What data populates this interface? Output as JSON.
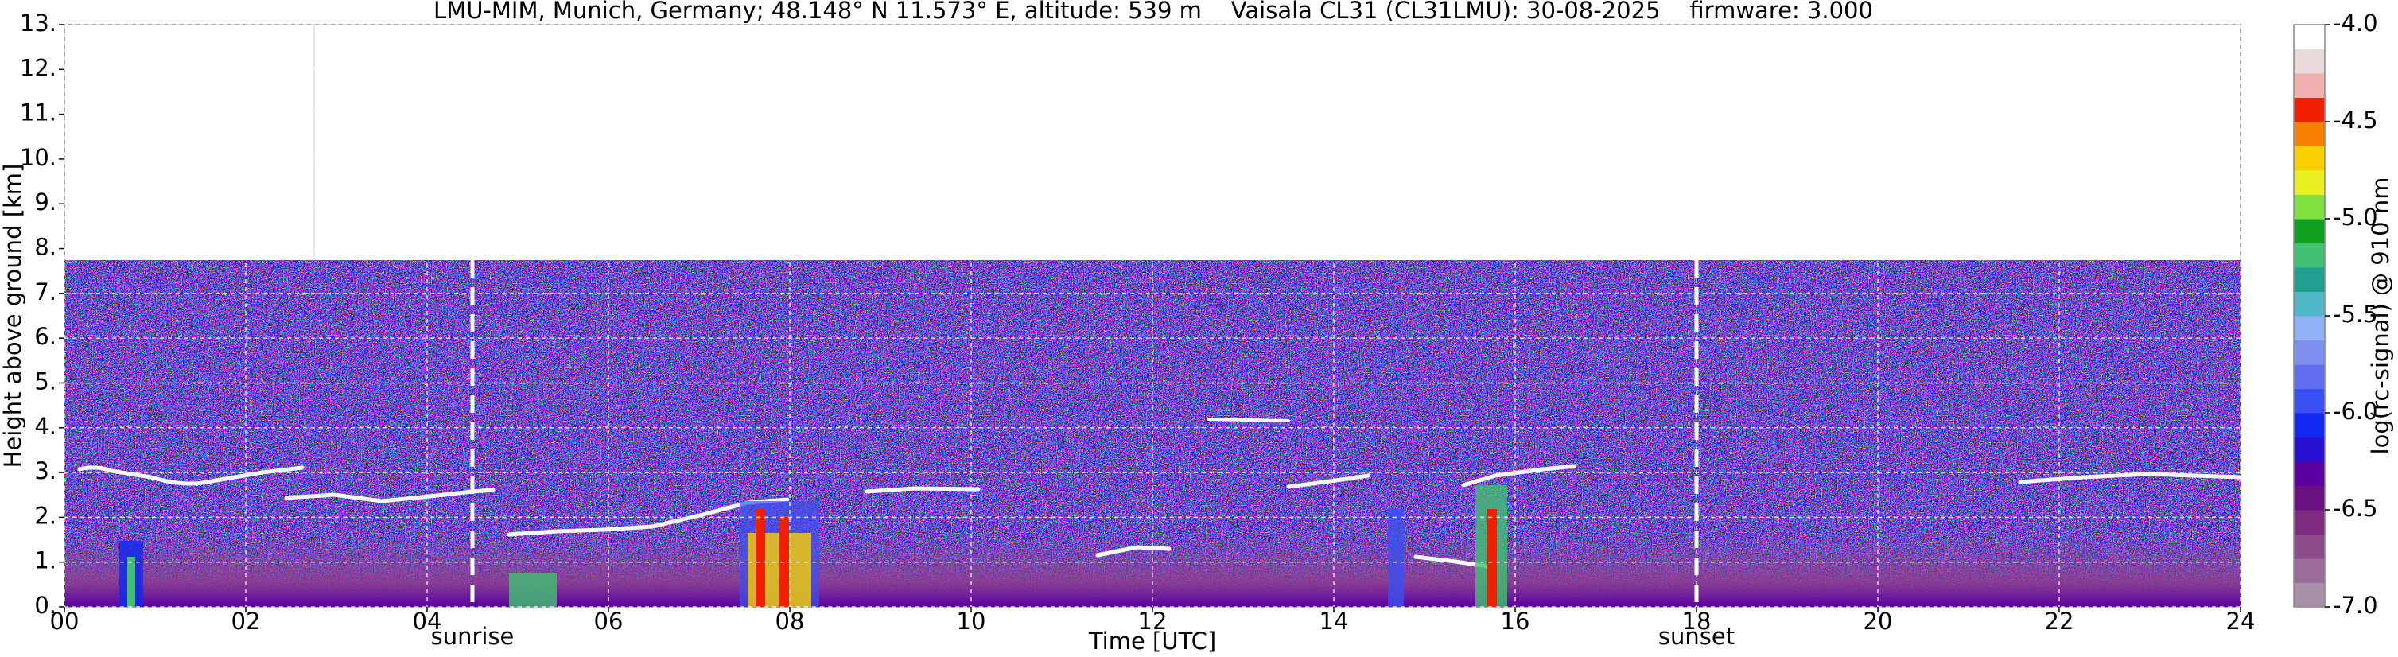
{
  "chart_data": {
    "type": "heatmap",
    "title": "LMU-MIM, Munich, Germany; 48.148° N 11.573° E, altitude: 539 m    Vaisala CL31 (CL31LMU): 30-08-2025    firmware: 3.000",
    "xlabel": "Time [UTC]",
    "ylabel": "Height above ground [km]",
    "xlim": [
      0,
      24
    ],
    "xticks": [
      {
        "value": 0,
        "label": "00"
      },
      {
        "value": 2,
        "label": "02"
      },
      {
        "value": 4,
        "label": "04"
      },
      {
        "value": 6,
        "label": "06"
      },
      {
        "value": 8,
        "label": "08"
      },
      {
        "value": 10,
        "label": "10"
      },
      {
        "value": 12,
        "label": "12"
      },
      {
        "value": 14,
        "label": "14"
      },
      {
        "value": 16,
        "label": "16"
      },
      {
        "value": 18,
        "label": "18"
      },
      {
        "value": 20,
        "label": "20"
      },
      {
        "value": 22,
        "label": "22"
      },
      {
        "value": 24,
        "label": "24"
      }
    ],
    "ylim": [
      0,
      13
    ],
    "yticks": [
      {
        "value": 0,
        "label": "0."
      },
      {
        "value": 1,
        "label": "1."
      },
      {
        "value": 2,
        "label": "2."
      },
      {
        "value": 3,
        "label": "3."
      },
      {
        "value": 4,
        "label": "4."
      },
      {
        "value": 5,
        "label": "5."
      },
      {
        "value": 6,
        "label": "6."
      },
      {
        "value": 7,
        "label": "7."
      },
      {
        "value": 8,
        "label": "8."
      },
      {
        "value": 9,
        "label": "9."
      },
      {
        "value": 10,
        "label": "10."
      },
      {
        "value": 11,
        "label": "11."
      },
      {
        "value": 12,
        "label": "12."
      },
      {
        "value": 13,
        "label": "13."
      }
    ],
    "grid": true,
    "annotations": [
      {
        "text": "sunrise",
        "x": 4.5
      },
      {
        "text": "sunset",
        "x": 18
      }
    ],
    "colorbar": {
      "label": "log(rc-signal) @ 910 nm",
      "lim": [
        -7,
        -4
      ],
      "ticks": [
        {
          "value": -7,
          "label": "-7.0"
        },
        -6.5,
        {
          "value": -6,
          "label": "-6.0"
        },
        -5.5,
        {
          "value": -5,
          "label": "-5.0"
        },
        -4.5,
        {
          "value": -4,
          "label": "-4.0"
        }
      ],
      "colors": [
        "#a890a8",
        "#9a6c9a",
        "#8c4c8c",
        "#7e2c80",
        "#6a1080",
        "#5a00a0",
        "#2a10d0",
        "#1028f0",
        "#3a50f0",
        "#6070f0",
        "#8090f0",
        "#90b0f8",
        "#50b8c8",
        "#20a090",
        "#40c070",
        "#10a020",
        "#80e040",
        "#e8f020",
        "#f8d000",
        "#f88000",
        "#f02000",
        "#f0b0b0",
        "#e8dada",
        "#ffffff"
      ]
    }
  }
}
